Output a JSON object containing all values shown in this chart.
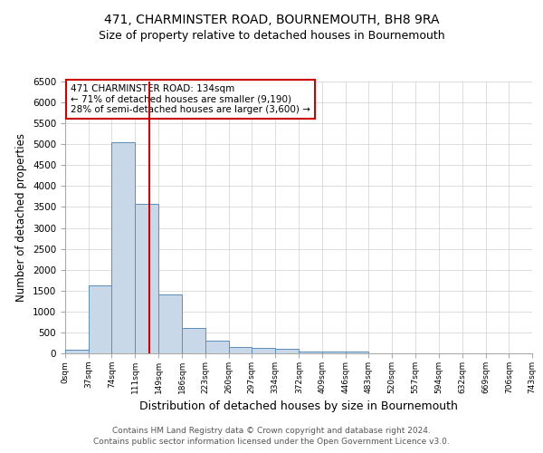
{
  "title": "471, CHARMINSTER ROAD, BOURNEMOUTH, BH8 9RA",
  "subtitle": "Size of property relative to detached houses in Bournemouth",
  "xlabel": "Distribution of detached houses by size in Bournemouth",
  "ylabel": "Number of detached properties",
  "footnote1": "Contains HM Land Registry data © Crown copyright and database right 2024.",
  "footnote2": "Contains public sector information licensed under the Open Government Licence v3.0.",
  "bin_edges": [
    0,
    37,
    74,
    111,
    149,
    186,
    223,
    260,
    297,
    334,
    372,
    409,
    446,
    483,
    520,
    557,
    594,
    632,
    669,
    706,
    743
  ],
  "bin_labels": [
    "0sqm",
    "37sqm",
    "74sqm",
    "111sqm",
    "149sqm",
    "186sqm",
    "223sqm",
    "260sqm",
    "297sqm",
    "334sqm",
    "372sqm",
    "409sqm",
    "446sqm",
    "483sqm",
    "520sqm",
    "557sqm",
    "594sqm",
    "632sqm",
    "669sqm",
    "706sqm",
    "743sqm"
  ],
  "bar_heights": [
    80,
    1620,
    5050,
    3580,
    1400,
    610,
    300,
    160,
    130,
    100,
    50,
    40,
    50,
    0,
    0,
    0,
    0,
    0,
    0,
    0
  ],
  "bar_color": "#c8d8e8",
  "bar_edge_color": "#5b8db8",
  "property_size": 134,
  "red_line_color": "#cc0000",
  "annotation_text": "471 CHARMINSTER ROAD: 134sqm\n← 71% of detached houses are smaller (9,190)\n28% of semi-detached houses are larger (3,600) →",
  "annotation_box_color": "#cc0000",
  "ylim": [
    0,
    6500
  ],
  "grid_color": "#d0d0d0",
  "background_color": "#ffffff",
  "title_fontsize": 10,
  "subtitle_fontsize": 9,
  "footnote_fontsize": 6.5
}
